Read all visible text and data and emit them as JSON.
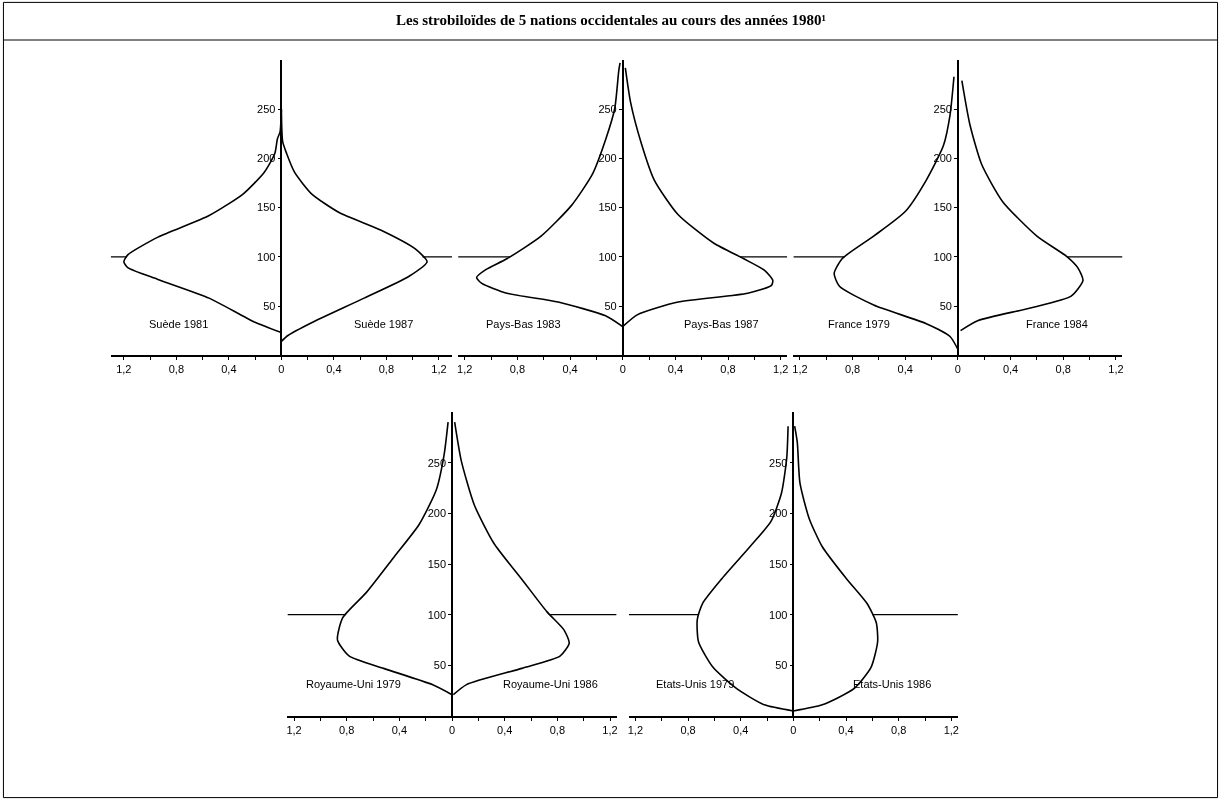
{
  "chart_data": [
    {
      "type": "other",
      "title": "Les strobiloïdes de 5 nations occidentales au cours des années 1980¹"
    },
    {
      "type": "line",
      "xlim": [
        -1.3,
        1.3
      ],
      "ylim": [
        0,
        300
      ],
      "xticks": [
        {
          "value": -1.2,
          "label": "1,2"
        },
        {
          "value": -1.0,
          "label": null
        },
        {
          "value": -0.8,
          "label": "0,8"
        },
        {
          "value": -0.6,
          "label": null
        },
        {
          "value": -0.4,
          "label": "0,4"
        },
        {
          "value": -0.2,
          "label": null
        },
        0,
        {
          "value": 0.2,
          "label": null
        },
        {
          "value": 0.4,
          "label": "0,4"
        },
        {
          "value": 0.6,
          "label": null
        },
        {
          "value": 0.8,
          "label": "0,8"
        },
        {
          "value": 1.0,
          "label": null
        },
        {
          "value": 1.2,
          "label": "1,2"
        }
      ],
      "yticks": [
        50,
        100,
        150,
        200,
        250
      ],
      "grid": false,
      "legend": false,
      "marker": "none",
      "line_style": "solid",
      "ref_lines": [
        {
          "axis": "y",
          "value": 100,
          "color": "#000000"
        }
      ],
      "series": [
        {
          "name": "Suède 1981",
          "color": "#000000",
          "x": [
            0,
            -0.21,
            -0.55,
            -0.94,
            -1.17,
            -1.2,
            -1.17,
            -0.94,
            -0.55,
            -0.29,
            -0.13,
            -0.05,
            -0.03,
            -0.01,
            0
          ],
          "values": [
            23,
            34,
            58,
            77,
            89,
            95,
            102,
            120,
            142,
            164,
            186,
            205,
            220,
            227,
            250
          ]
        },
        {
          "name": "Suède 1987",
          "color": "#000000",
          "x": [
            0,
            0.05,
            0.23,
            0.63,
            0.97,
            1.11,
            1.02,
            0.76,
            0.44,
            0.23,
            0.1,
            0.04,
            0.01,
            0
          ],
          "values": [
            14,
            20,
            33,
            58,
            80,
            95,
            108,
            127,
            145,
            164,
            186,
            205,
            217,
            250
          ]
        }
      ]
    },
    {
      "type": "line",
      "xlim": [
        -1.25,
        1.25
      ],
      "ylim": [
        0,
        300
      ],
      "xticks": [
        {
          "value": -1.2,
          "label": "1,2"
        },
        {
          "value": -1.0,
          "label": null
        },
        {
          "value": -0.8,
          "label": "0,8"
        },
        {
          "value": -0.6,
          "label": null
        },
        {
          "value": -0.4,
          "label": "0,4"
        },
        {
          "value": -0.2,
          "label": null
        },
        0,
        {
          "value": 0.2,
          "label": null
        },
        {
          "value": 0.4,
          "label": "0,4"
        },
        {
          "value": 0.6,
          "label": null
        },
        {
          "value": 0.8,
          "label": "0,8"
        },
        {
          "value": 1.0,
          "label": null
        },
        {
          "value": 1.2,
          "label": "1,2"
        }
      ],
      "yticks": [
        50,
        100,
        150,
        200,
        250
      ],
      "grid": false,
      "legend": false,
      "marker": "none",
      "line_style": "solid",
      "ref_lines": [
        {
          "axis": "y",
          "value": 100,
          "color": "#000000"
        }
      ],
      "series": [
        {
          "name": "Pays-Bas 1983",
          "color": "#000000",
          "x": [
            0,
            -0.13,
            -0.49,
            -0.88,
            -1.07,
            -1.11,
            -1.04,
            -0.88,
            -0.62,
            -0.39,
            -0.23,
            -0.13,
            -0.06,
            -0.03,
            -0.02
          ],
          "values": [
            29,
            40,
            54,
            63,
            73,
            79,
            87,
            98,
            121,
            152,
            184,
            219,
            251,
            289,
            297
          ]
        },
        {
          "name": "Pays-Bas 1987",
          "color": "#000000",
          "x": [
            0,
            0.11,
            0.42,
            0.95,
            1.13,
            1.14,
            1.08,
            0.92,
            0.69,
            0.42,
            0.24,
            0.14,
            0.06,
            0.02
          ],
          "values": [
            29,
            41,
            54,
            63,
            71,
            76,
            86,
            98,
            114,
            143,
            178,
            216,
            257,
            292
          ]
        }
      ]
    },
    {
      "type": "line",
      "xlim": [
        -1.25,
        1.25
      ],
      "ylim": [
        0,
        300
      ],
      "xticks": [
        {
          "value": -1.2,
          "label": "1,2"
        },
        {
          "value": -1.0,
          "label": null
        },
        {
          "value": -0.8,
          "label": "0,8"
        },
        {
          "value": -0.6,
          "label": null
        },
        {
          "value": -0.4,
          "label": "0,4"
        },
        {
          "value": -0.2,
          "label": null
        },
        0,
        {
          "value": 0.2,
          "label": null
        },
        {
          "value": 0.4,
          "label": "0,4"
        },
        {
          "value": 0.6,
          "label": null
        },
        {
          "value": 0.8,
          "label": "0,8"
        },
        {
          "value": 1.0,
          "label": null
        },
        {
          "value": 1.2,
          "label": "1,2"
        }
      ],
      "yticks": [
        50,
        100,
        150,
        200,
        250
      ],
      "grid": false,
      "legend": false,
      "marker": "none",
      "line_style": "solid",
      "ref_lines": [
        {
          "axis": "y",
          "value": 100,
          "color": "#000000"
        }
      ],
      "series": [
        {
          "name": "France 1979",
          "color": "#000000",
          "x": [
            0,
            -0.06,
            -0.24,
            -0.64,
            -0.9,
            -0.94,
            -0.88,
            -0.64,
            -0.4,
            -0.24,
            -0.11,
            -0.06,
            -0.03
          ],
          "values": [
            6,
            19,
            32,
            51,
            70,
            83,
            98,
            121,
            146,
            178,
            213,
            244,
            283
          ]
        },
        {
          "name": "France 1984",
          "color": "#000000",
          "x": [
            0.02,
            0.15,
            0.55,
            0.86,
            0.95,
            0.91,
            0.83,
            0.6,
            0.34,
            0.18,
            0.09,
            0.03
          ],
          "values": [
            25,
            35,
            48,
            60,
            76,
            89,
            100,
            121,
            156,
            194,
            235,
            279
          ]
        }
      ]
    },
    {
      "type": "line",
      "xlim": [
        -1.25,
        1.25
      ],
      "ylim": [
        0,
        300
      ],
      "xticks": [
        {
          "value": -1.2,
          "label": "1,2"
        },
        {
          "value": -1.0,
          "label": null
        },
        {
          "value": -0.8,
          "label": "0,8"
        },
        {
          "value": -0.6,
          "label": null
        },
        {
          "value": -0.4,
          "label": "0,4"
        },
        {
          "value": -0.2,
          "label": null
        },
        0,
        {
          "value": 0.2,
          "label": null
        },
        {
          "value": 0.4,
          "label": "0,4"
        },
        {
          "value": 0.6,
          "label": null
        },
        {
          "value": 0.8,
          "label": "0,8"
        },
        {
          "value": 1.0,
          "label": null
        },
        {
          "value": 1.2,
          "label": "1,2"
        }
      ],
      "yticks": [
        50,
        100,
        150,
        200,
        250
      ],
      "grid": false,
      "legend": false,
      "marker": "none",
      "line_style": "solid",
      "ref_lines": [
        {
          "axis": "y",
          "value": 100,
          "color": "#000000"
        }
      ],
      "series": [
        {
          "name": "Royaume-Uni 1979",
          "color": "#000000",
          "x": [
            0,
            -0.15,
            -0.52,
            -0.78,
            -0.87,
            -0.83,
            -0.65,
            -0.44,
            -0.25,
            -0.12,
            -0.06,
            -0.03
          ],
          "values": [
            21,
            31,
            47,
            59,
            75,
            97,
            122,
            157,
            189,
            223,
            258,
            290
          ]
        },
        {
          "name": "Royaume-Uni 1986",
          "color": "#000000",
          "x": [
            0.01,
            0.11,
            0.53,
            0.82,
            0.89,
            0.85,
            0.72,
            0.53,
            0.32,
            0.17,
            0.07,
            0.02
          ],
          "values": [
            21,
            31,
            47,
            59,
            72,
            85,
            103,
            135,
            170,
            208,
            252,
            290
          ]
        }
      ]
    },
    {
      "type": "line",
      "xlim": [
        -1.25,
        1.25
      ],
      "ylim": [
        0,
        300
      ],
      "xticks": [
        {
          "value": -1.2,
          "label": "1,2"
        },
        {
          "value": -1.0,
          "label": null
        },
        {
          "value": -0.8,
          "label": "0,8"
        },
        {
          "value": -0.6,
          "label": null
        },
        {
          "value": -0.4,
          "label": "0,4"
        },
        {
          "value": -0.2,
          "label": null
        },
        0,
        {
          "value": 0.2,
          "label": null
        },
        {
          "value": 0.4,
          "label": "0,4"
        },
        {
          "value": 0.6,
          "label": null
        },
        {
          "value": 0.8,
          "label": "0,8"
        },
        {
          "value": 1.0,
          "label": null
        },
        {
          "value": 1.2,
          "label": "1,2"
        }
      ],
      "yticks": [
        50,
        100,
        150,
        200,
        250
      ],
      "grid": false,
      "legend": false,
      "marker": "none",
      "line_style": "solid",
      "ref_lines": [
        {
          "axis": "y",
          "value": 100,
          "color": "#000000"
        }
      ],
      "series": [
        {
          "name": "Etats-Unis 1979",
          "color": "#000000",
          "x": [
            0,
            -0.22,
            -0.43,
            -0.61,
            -0.72,
            -0.73,
            -0.69,
            -0.54,
            -0.33,
            -0.17,
            -0.09,
            -0.05,
            -0.04
          ],
          "values": [
            5,
            11,
            27,
            48,
            73,
            95,
            111,
            136,
            167,
            192,
            220,
            255,
            286
          ]
        },
        {
          "name": "Etats-Unis 1986",
          "color": "#000000",
          "x": [
            0,
            0.22,
            0.46,
            0.59,
            0.64,
            0.63,
            0.56,
            0.4,
            0.22,
            0.12,
            0.05,
            0.03,
            0.01
          ],
          "values": [
            5,
            11,
            27,
            48,
            73,
            92,
            111,
            136,
            167,
            195,
            230,
            270,
            286
          ]
        }
      ]
    }
  ]
}
